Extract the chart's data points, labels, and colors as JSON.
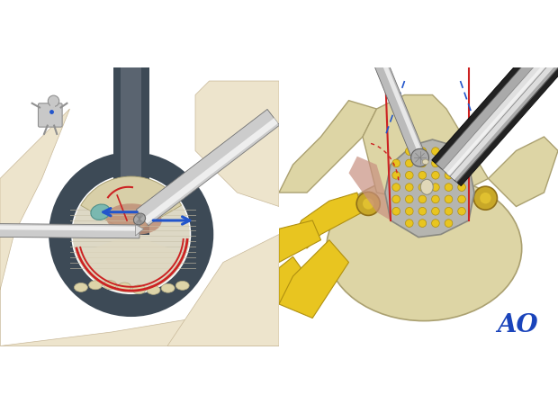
{
  "bg_color": "#ffffff",
  "fig_w": 6.2,
  "fig_h": 4.59,
  "dpi": 100,
  "tissue_color": "#e8dfc8",
  "tissue_edge": "#c8b898",
  "tube_dark": "#3d4a56",
  "tube_mid": "#5a6470",
  "tube_light_inner": "#7a8490",
  "inside_bg": "#d8d0b8",
  "bone_color": "#ddd5a8",
  "bone_edge": "#aaa070",
  "nerve_yellow": "#e8c520",
  "nerve_edge": "#b09010",
  "lig_gray": "#c0bdb5",
  "lig_edge": "#909090",
  "dot_yellow": "#e8c520",
  "dot_edge": "#b09010",
  "red_color": "#cc2222",
  "blue_color": "#2255cc",
  "ao_color": "#1a44bb",
  "teal_color": "#7ab8b0",
  "shaft_dark": "#666666",
  "shaft_mid": "#b8b8b8",
  "shaft_light": "#e8e8e8",
  "shaft_black": "#1a1a1a"
}
